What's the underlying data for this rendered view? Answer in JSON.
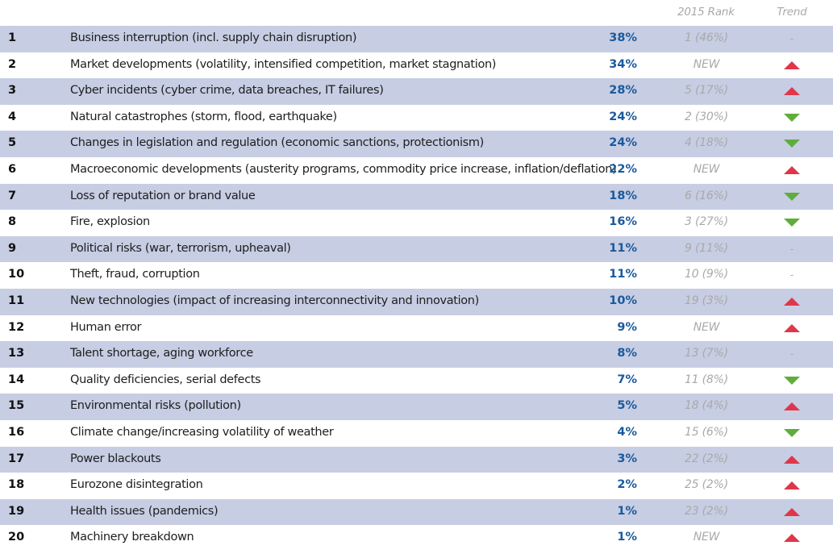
{
  "header": {
    "prev_rank_label": "2015 Rank",
    "trend_label": "Trend"
  },
  "colors": {
    "row_shade": "#c7cde3",
    "percent_text": "#1a5a9c",
    "muted_text": "#a9a9a9",
    "trend_up": "#e0364a",
    "trend_down": "#5fad3b"
  },
  "rows": [
    {
      "rank": "1",
      "label": "Business interruption (incl. supply chain disruption)",
      "percent": "38%",
      "prev": "1 (46%)",
      "trend": "same",
      "trend_text": "-"
    },
    {
      "rank": "2",
      "label": "Market developments (volatility, intensified competition, market stagnation)",
      "percent": "34%",
      "prev": "NEW",
      "trend": "up",
      "trend_text": ""
    },
    {
      "rank": "3",
      "label": "Cyber incidents (cyber crime, data breaches, IT failures)",
      "percent": "28%",
      "prev": "5 (17%)",
      "trend": "up",
      "trend_text": ""
    },
    {
      "rank": "4",
      "label": "Natural catastrophes (storm, flood, earthquake)",
      "percent": "24%",
      "prev": "2 (30%)",
      "trend": "down",
      "trend_text": ""
    },
    {
      "rank": "5",
      "label": "Changes in legislation and regulation (economic sanctions, protectionism)",
      "percent": "24%",
      "prev": "4 (18%)",
      "trend": "down",
      "trend_text": ""
    },
    {
      "rank": "6",
      "label": "Macroeconomic developments (austerity programs, commodity price increase, inflation/deflation)",
      "percent": "22%",
      "prev": "NEW",
      "trend": "up",
      "trend_text": ""
    },
    {
      "rank": "7",
      "label": "Loss of reputation or brand value",
      "percent": "18%",
      "prev": "6 (16%)",
      "trend": "down",
      "trend_text": ""
    },
    {
      "rank": "8",
      "label": "Fire, explosion",
      "percent": "16%",
      "prev": "3 (27%)",
      "trend": "down",
      "trend_text": ""
    },
    {
      "rank": "9",
      "label": "Political risks (war, terrorism, upheaval)",
      "percent": "11%",
      "prev": "9 (11%)",
      "trend": "same",
      "trend_text": "-"
    },
    {
      "rank": "10",
      "label": "Theft, fraud, corruption",
      "percent": "11%",
      "prev": "10 (9%)",
      "trend": "same",
      "trend_text": "-"
    },
    {
      "rank": "11",
      "label": "New technologies (impact of increasing interconnectivity and innovation)",
      "percent": "10%",
      "prev": "19 (3%)",
      "trend": "up",
      "trend_text": ""
    },
    {
      "rank": "12",
      "label": "Human error",
      "percent": "9%",
      "prev": "NEW",
      "trend": "up",
      "trend_text": ""
    },
    {
      "rank": "13",
      "label": "Talent shortage, aging workforce",
      "percent": "8%",
      "prev": "13 (7%)",
      "trend": "same",
      "trend_text": "-"
    },
    {
      "rank": "14",
      "label": "Quality deficiencies, serial defects",
      "percent": "7%",
      "prev": "11 (8%)",
      "trend": "down",
      "trend_text": ""
    },
    {
      "rank": "15",
      "label": "Environmental risks (pollution)",
      "percent": "5%",
      "prev": "18 (4%)",
      "trend": "up",
      "trend_text": ""
    },
    {
      "rank": "16",
      "label": "Climate change/increasing volatility of weather",
      "percent": "4%",
      "prev": "15 (6%)",
      "trend": "down",
      "trend_text": ""
    },
    {
      "rank": "17",
      "label": "Power blackouts",
      "percent": "3%",
      "prev": "22 (2%)",
      "trend": "up",
      "trend_text": ""
    },
    {
      "rank": "18",
      "label": "Eurozone disintegration",
      "percent": "2%",
      "prev": "25 (2%)",
      "trend": "up",
      "trend_text": ""
    },
    {
      "rank": "19",
      "label": "Health issues (pandemics)",
      "percent": "1%",
      "prev": "23 (2%)",
      "trend": "up",
      "trend_text": ""
    },
    {
      "rank": "20",
      "label": "Machinery breakdown",
      "percent": "1%",
      "prev": "NEW",
      "trend": "up",
      "trend_text": ""
    }
  ]
}
